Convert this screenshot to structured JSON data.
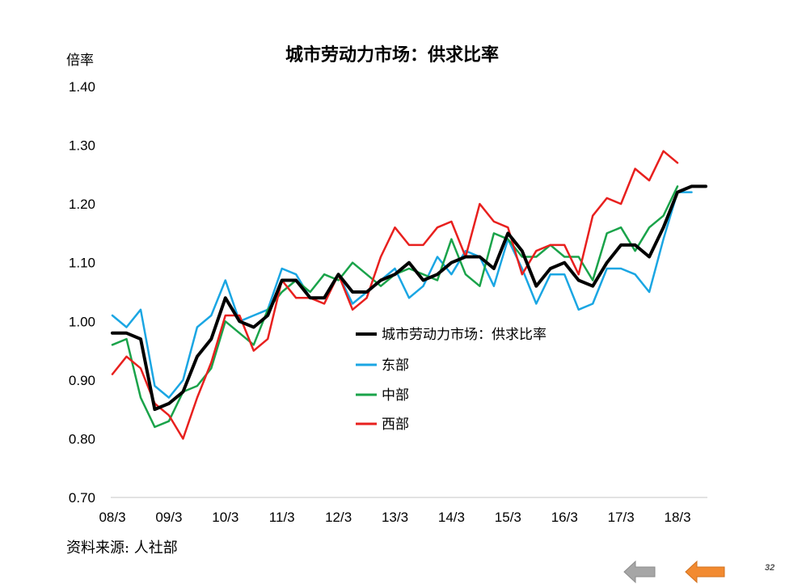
{
  "chart_data": {
    "type": "line",
    "title": "城市劳动力市场：供求比率",
    "ylabel": "倍率",
    "xlabel": "",
    "ylim": [
      0.7,
      1.4
    ],
    "yticks": [
      "0.70",
      "0.80",
      "0.90",
      "1.00",
      "1.10",
      "1.20",
      "1.30",
      "1.40"
    ],
    "x_ticks": [
      "08/3",
      "09/3",
      "10/3",
      "11/3",
      "12/3",
      "13/3",
      "14/3",
      "15/3",
      "16/3",
      "17/3",
      "18/3"
    ],
    "grid": false,
    "legend_position": "center",
    "series": [
      {
        "name": "城市劳动力市场：供求比率",
        "color": "#000000",
        "values": [
          0.98,
          0.98,
          0.97,
          0.85,
          0.86,
          0.88,
          0.94,
          0.97,
          1.04,
          1.0,
          0.99,
          1.01,
          1.07,
          1.07,
          1.04,
          1.04,
          1.08,
          1.05,
          1.05,
          1.07,
          1.08,
          1.1,
          1.07,
          1.08,
          1.1,
          1.11,
          1.11,
          1.09,
          1.15,
          1.12,
          1.06,
          1.09,
          1.1,
          1.07,
          1.06,
          1.1,
          1.13,
          1.13,
          1.11,
          1.16,
          1.22,
          1.23,
          1.23
        ]
      },
      {
        "name": "东部",
        "color": "#1AA6E3",
        "values": [
          1.01,
          0.99,
          1.02,
          0.89,
          0.87,
          0.9,
          0.99,
          1.01,
          1.07,
          1.0,
          1.01,
          1.02,
          1.09,
          1.08,
          1.04,
          1.04,
          1.08,
          1.03,
          1.05,
          1.07,
          1.09,
          1.04,
          1.06,
          1.11,
          1.08,
          1.12,
          1.11,
          1.06,
          1.14,
          1.09,
          1.03,
          1.08,
          1.08,
          1.02,
          1.03,
          1.09,
          1.09,
          1.08,
          1.05,
          1.14,
          1.22,
          1.22
        ]
      },
      {
        "name": "中部",
        "color": "#1AA34A",
        "values": [
          0.96,
          0.97,
          0.87,
          0.82,
          0.83,
          0.88,
          0.89,
          0.92,
          1.0,
          0.98,
          0.96,
          1.02,
          1.05,
          1.07,
          1.05,
          1.08,
          1.07,
          1.1,
          1.08,
          1.06,
          1.08,
          1.09,
          1.08,
          1.07,
          1.14,
          1.08,
          1.06,
          1.15,
          1.14,
          1.11,
          1.11,
          1.13,
          1.11,
          1.11,
          1.07,
          1.15,
          1.16,
          1.12,
          1.16,
          1.18,
          1.23
        ]
      },
      {
        "name": "西部",
        "color": "#E8201E",
        "values": [
          0.91,
          0.94,
          0.92,
          0.86,
          0.84,
          0.8,
          0.87,
          0.93,
          1.01,
          1.01,
          0.95,
          0.97,
          1.07,
          1.04,
          1.04,
          1.03,
          1.08,
          1.02,
          1.04,
          1.11,
          1.16,
          1.13,
          1.13,
          1.16,
          1.17,
          1.11,
          1.2,
          1.17,
          1.16,
          1.08,
          1.12,
          1.13,
          1.13,
          1.08,
          1.18,
          1.21,
          1.2,
          1.26,
          1.24,
          1.29,
          1.27
        ]
      }
    ]
  },
  "source_note": "资料来源: 人社部",
  "page_number": "32",
  "nav": {
    "back_icon": "arrow-left-gray-icon",
    "forward_icon": "arrow-left-orange-icon",
    "back_color": "#A6A6A6",
    "forward_color": "#F28A30"
  }
}
